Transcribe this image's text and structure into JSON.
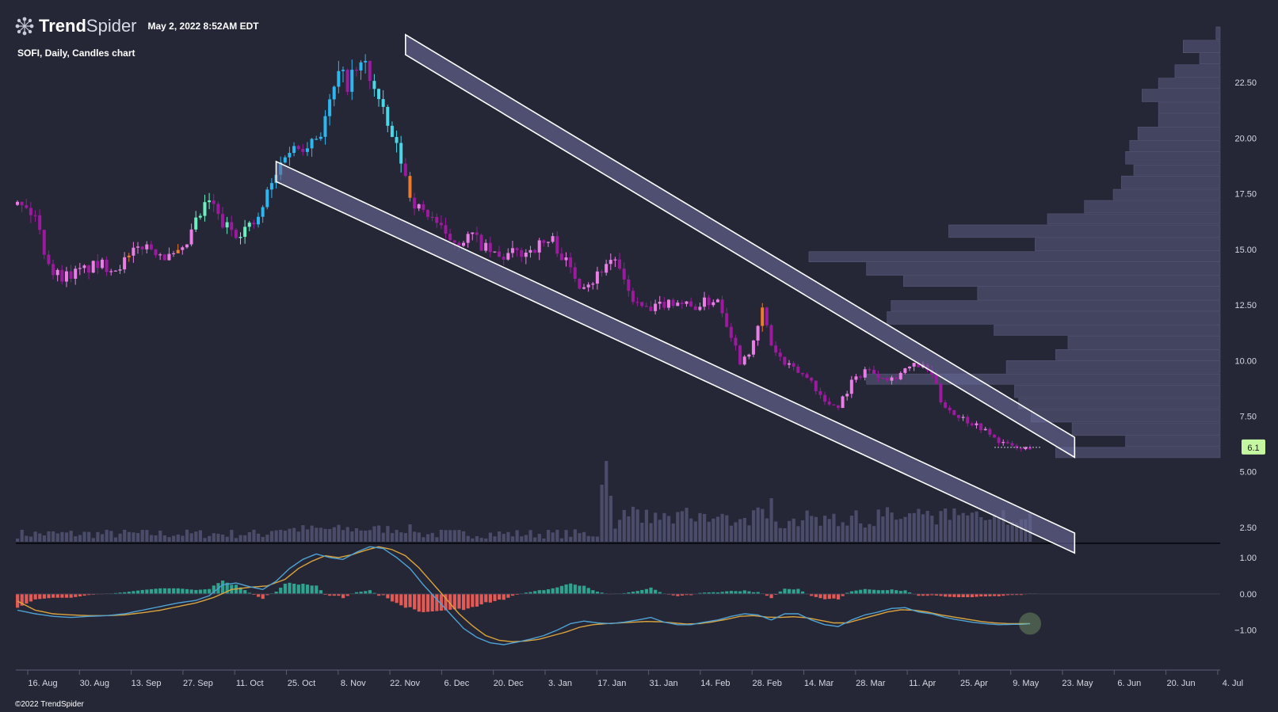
{
  "header": {
    "brand_bold": "Trend",
    "brand_light": "Spider",
    "logo_icon": "spider-web-icon",
    "timestamp": "May 2, 2022 8:52AM EDT",
    "symbol_line": "SOFI, Daily, Candles chart"
  },
  "footer": {
    "copyright": "©2022 TrendSpider"
  },
  "colors": {
    "background": "#252736",
    "candle_blue": "#2db7f0",
    "candle_cyan": "#49d6e6",
    "candle_mint": "#6cf0c0",
    "candle_orange": "#ee7a2c",
    "candle_pink": "#ea7ee6",
    "candle_magenta": "#9b1a9e",
    "volume": "#4f5170",
    "volume_profile": "#424460",
    "wedge_fill": "#6a6b99",
    "wedge_line": "#ffffff",
    "macd_line": "#4fa2d6",
    "signal_line": "#dca43c",
    "hist_pos": "#2ea38f",
    "hist_neg": "#e25a55",
    "price_tag": "#c5f7a0"
  },
  "chart_data": {
    "type": "candlestick",
    "symbol": "SOFI",
    "interval": "Daily",
    "price_axis": {
      "ticks": [
        2.5,
        5.0,
        7.5,
        10.0,
        12.5,
        15.0,
        17.5,
        20.0,
        22.5
      ],
      "tick_labels": [
        "2.50",
        "5.00",
        "7.50",
        "10.00",
        "12.50",
        "15.00",
        "17.50",
        "20.00",
        "22.50"
      ],
      "range": [
        2.0,
        25.0
      ]
    },
    "x_axis": {
      "tick_labels": [
        "16. Aug",
        "30. Aug",
        "13. Sep",
        "27. Sep",
        "11. Oct",
        "25. Oct",
        "8. Nov",
        "22. Nov",
        "6. Dec",
        "20. Dec",
        "3. Jan",
        "17. Jan",
        "31. Jan",
        "14. Feb",
        "28. Feb",
        "14. Mar",
        "28. Mar",
        "11. Apr",
        "25. Apr",
        "9. May",
        "23. May",
        "6. Jun",
        "20. Jun",
        "4. Jul"
      ]
    },
    "last_price": "6.1",
    "price_path": [
      [
        0,
        17.0
      ],
      [
        2,
        16.8
      ],
      [
        4,
        16.5
      ],
      [
        6,
        15.0
      ],
      [
        8,
        14.0
      ],
      [
        10,
        13.8
      ],
      [
        14,
        14.0
      ],
      [
        18,
        14.3
      ],
      [
        22,
        14.2
      ],
      [
        25,
        14.6
      ],
      [
        28,
        15.2
      ],
      [
        31,
        15.0
      ],
      [
        34,
        14.6
      ],
      [
        37,
        14.8
      ],
      [
        40,
        16.2
      ],
      [
        43,
        17.2
      ],
      [
        46,
        16.1
      ],
      [
        49,
        15.8
      ],
      [
        52,
        16.0
      ],
      [
        54,
        16.3
      ],
      [
        56,
        17.5
      ],
      [
        58,
        18.3
      ],
      [
        60,
        19.4
      ],
      [
        63,
        19.6
      ],
      [
        66,
        20.0
      ],
      [
        68,
        20.3
      ],
      [
        70,
        21.5
      ],
      [
        72,
        22.8
      ],
      [
        74,
        22.5
      ],
      [
        76,
        23.0
      ],
      [
        78,
        23.3
      ],
      [
        80,
        22.2
      ],
      [
        82,
        21.0
      ],
      [
        84,
        20.0
      ],
      [
        86,
        19.0
      ],
      [
        88,
        17.5
      ],
      [
        90,
        16.8
      ],
      [
        93,
        16.5
      ],
      [
        96,
        15.5
      ],
      [
        99,
        15.4
      ],
      [
        102,
        15.6
      ],
      [
        105,
        15.0
      ],
      [
        108,
        14.6
      ],
      [
        111,
        14.8
      ],
      [
        114,
        14.9
      ],
      [
        117,
        15.2
      ],
      [
        120,
        15.4
      ],
      [
        123,
        14.4
      ],
      [
        126,
        13.5
      ],
      [
        129,
        13.6
      ],
      [
        132,
        14.4
      ],
      [
        134,
        14.6
      ],
      [
        136,
        13.4
      ],
      [
        139,
        12.5
      ],
      [
        142,
        12.2
      ],
      [
        145,
        12.6
      ],
      [
        148,
        12.7
      ],
      [
        151,
        12.4
      ],
      [
        154,
        12.6
      ],
      [
        157,
        12.8
      ],
      [
        160,
        11.2
      ],
      [
        162,
        10.0
      ],
      [
        165,
        10.7
      ],
      [
        167,
        12.3
      ],
      [
        169,
        10.7
      ],
      [
        172,
        9.8
      ],
      [
        175,
        9.5
      ],
      [
        178,
        9.1
      ],
      [
        181,
        8.1
      ],
      [
        184,
        8.0
      ],
      [
        187,
        9.0
      ],
      [
        190,
        9.6
      ],
      [
        193,
        9.4
      ],
      [
        196,
        9.2
      ],
      [
        199,
        9.6
      ],
      [
        202,
        9.8
      ],
      [
        205,
        9.4
      ],
      [
        207,
        8.2
      ],
      [
        210,
        7.6
      ],
      [
        213,
        7.3
      ],
      [
        216,
        7.0
      ],
      [
        219,
        6.5
      ],
      [
        222,
        6.2
      ],
      [
        225,
        6.0
      ],
      [
        227,
        6.1
      ]
    ],
    "volume_profile": [
      [
        25.0,
        24.4,
        0.01
      ],
      [
        24.4,
        23.8,
        0.09
      ],
      [
        23.8,
        23.3,
        0.05
      ],
      [
        23.3,
        22.7,
        0.11
      ],
      [
        22.7,
        22.2,
        0.15
      ],
      [
        22.2,
        21.6,
        0.19
      ],
      [
        21.6,
        21.1,
        0.15
      ],
      [
        21.1,
        20.5,
        0.15
      ],
      [
        20.5,
        19.9,
        0.2
      ],
      [
        19.9,
        19.4,
        0.22
      ],
      [
        19.4,
        18.8,
        0.23
      ],
      [
        18.8,
        18.3,
        0.21
      ],
      [
        18.3,
        17.7,
        0.24
      ],
      [
        17.7,
        17.2,
        0.26
      ],
      [
        17.2,
        16.6,
        0.33
      ],
      [
        16.6,
        16.1,
        0.42
      ],
      [
        16.1,
        15.5,
        0.66
      ],
      [
        15.5,
        14.9,
        0.45
      ],
      [
        14.9,
        14.4,
        1.0
      ],
      [
        14.4,
        13.8,
        0.86
      ],
      [
        13.8,
        13.3,
        0.77
      ],
      [
        13.3,
        12.7,
        0.59
      ],
      [
        12.7,
        12.2,
        0.8
      ],
      [
        12.2,
        11.6,
        0.81
      ],
      [
        11.6,
        11.1,
        0.55
      ],
      [
        11.1,
        10.5,
        0.37
      ],
      [
        10.5,
        10.0,
        0.4
      ],
      [
        10.0,
        9.4,
        0.52
      ],
      [
        9.4,
        8.9,
        0.86
      ],
      [
        8.9,
        8.3,
        0.5
      ],
      [
        8.3,
        7.8,
        0.49
      ],
      [
        7.8,
        7.2,
        0.46
      ],
      [
        7.2,
        6.6,
        0.36
      ],
      [
        6.6,
        6.1,
        0.23
      ],
      [
        6.1,
        5.6,
        0.4
      ]
    ],
    "wedge": {
      "upper": {
        "from": [
          87,
          24.2
        ],
        "to": [
          237,
          6.1
        ]
      },
      "lower": {
        "from": [
          58,
          18.5
        ],
        "to": [
          237,
          1.8
        ]
      },
      "band": 0.45
    },
    "macd": {
      "axis": {
        "ticks": [
          1.0,
          0.0,
          -1.0
        ],
        "tick_labels": [
          "1.00",
          "0.00",
          "−1.00"
        ],
        "range": [
          -1.75,
          1.35
        ]
      },
      "macd_path": [
        [
          0,
          -0.45
        ],
        [
          4,
          -0.55
        ],
        [
          8,
          -0.62
        ],
        [
          12,
          -0.65
        ],
        [
          16,
          -0.62
        ],
        [
          20,
          -0.6
        ],
        [
          24,
          -0.55
        ],
        [
          28,
          -0.45
        ],
        [
          32,
          -0.35
        ],
        [
          36,
          -0.25
        ],
        [
          40,
          -0.18
        ],
        [
          43,
          -0.05
        ],
        [
          46,
          0.25
        ],
        [
          49,
          0.3
        ],
        [
          52,
          0.2
        ],
        [
          55,
          0.12
        ],
        [
          58,
          0.35
        ],
        [
          61,
          0.7
        ],
        [
          64,
          0.95
        ],
        [
          67,
          1.1
        ],
        [
          70,
          1.0
        ],
        [
          73,
          0.95
        ],
        [
          76,
          1.15
        ],
        [
          79,
          1.3
        ],
        [
          82,
          1.25
        ],
        [
          85,
          1.0
        ],
        [
          88,
          0.7
        ],
        [
          91,
          0.25
        ],
        [
          94,
          -0.15
        ],
        [
          97,
          -0.55
        ],
        [
          100,
          -0.95
        ],
        [
          103,
          -1.2
        ],
        [
          106,
          -1.35
        ],
        [
          109,
          -1.4
        ],
        [
          112,
          -1.33
        ],
        [
          115,
          -1.25
        ],
        [
          118,
          -1.15
        ],
        [
          121,
          -1.0
        ],
        [
          124,
          -0.82
        ],
        [
          127,
          -0.75
        ],
        [
          130,
          -0.8
        ],
        [
          133,
          -0.82
        ],
        [
          136,
          -0.78
        ],
        [
          139,
          -0.72
        ],
        [
          142,
          -0.65
        ],
        [
          145,
          -0.78
        ],
        [
          148,
          -0.85
        ],
        [
          151,
          -0.85
        ],
        [
          154,
          -0.78
        ],
        [
          157,
          -0.72
        ],
        [
          160,
          -0.62
        ],
        [
          163,
          -0.55
        ],
        [
          166,
          -0.58
        ],
        [
          169,
          -0.72
        ],
        [
          172,
          -0.55
        ],
        [
          175,
          -0.55
        ],
        [
          178,
          -0.72
        ],
        [
          181,
          -0.85
        ],
        [
          184,
          -0.9
        ],
        [
          187,
          -0.72
        ],
        [
          190,
          -0.58
        ],
        [
          193,
          -0.5
        ],
        [
          196,
          -0.4
        ],
        [
          199,
          -0.38
        ],
        [
          202,
          -0.5
        ],
        [
          205,
          -0.55
        ],
        [
          208,
          -0.65
        ],
        [
          211,
          -0.72
        ],
        [
          214,
          -0.78
        ],
        [
          217,
          -0.82
        ],
        [
          220,
          -0.85
        ],
        [
          223,
          -0.84
        ],
        [
          225,
          -0.84
        ],
        [
          227,
          -0.82
        ]
      ],
      "signal_path": [
        [
          0,
          -0.2
        ],
        [
          4,
          -0.45
        ],
        [
          8,
          -0.55
        ],
        [
          12,
          -0.58
        ],
        [
          16,
          -0.6
        ],
        [
          20,
          -0.6
        ],
        [
          24,
          -0.58
        ],
        [
          28,
          -0.52
        ],
        [
          32,
          -0.45
        ],
        [
          36,
          -0.35
        ],
        [
          40,
          -0.25
        ],
        [
          44,
          -0.1
        ],
        [
          48,
          0.12
        ],
        [
          52,
          0.18
        ],
        [
          56,
          0.22
        ],
        [
          60,
          0.4
        ],
        [
          63,
          0.7
        ],
        [
          66,
          0.9
        ],
        [
          69,
          1.05
        ],
        [
          72,
          1.0
        ],
        [
          75,
          1.08
        ],
        [
          78,
          1.2
        ],
        [
          81,
          1.3
        ],
        [
          84,
          1.22
        ],
        [
          87,
          1.05
        ],
        [
          90,
          0.72
        ],
        [
          93,
          0.3
        ],
        [
          96,
          -0.12
        ],
        [
          99,
          -0.55
        ],
        [
          102,
          -0.88
        ],
        [
          105,
          -1.15
        ],
        [
          108,
          -1.28
        ],
        [
          111,
          -1.32
        ],
        [
          114,
          -1.3
        ],
        [
          117,
          -1.25
        ],
        [
          120,
          -1.15
        ],
        [
          123,
          -1.05
        ],
        [
          126,
          -0.92
        ],
        [
          129,
          -0.85
        ],
        [
          132,
          -0.82
        ],
        [
          135,
          -0.8
        ],
        [
          138,
          -0.78
        ],
        [
          141,
          -0.76
        ],
        [
          144,
          -0.77
        ],
        [
          147,
          -0.8
        ],
        [
          150,
          -0.83
        ],
        [
          153,
          -0.82
        ],
        [
          156,
          -0.77
        ],
        [
          159,
          -0.7
        ],
        [
          162,
          -0.62
        ],
        [
          165,
          -0.6
        ],
        [
          168,
          -0.64
        ],
        [
          171,
          -0.65
        ],
        [
          174,
          -0.63
        ],
        [
          177,
          -0.66
        ],
        [
          180,
          -0.73
        ],
        [
          183,
          -0.8
        ],
        [
          186,
          -0.8
        ],
        [
          189,
          -0.7
        ],
        [
          192,
          -0.6
        ],
        [
          195,
          -0.5
        ],
        [
          198,
          -0.44
        ],
        [
          201,
          -0.45
        ],
        [
          204,
          -0.5
        ],
        [
          207,
          -0.58
        ],
        [
          210,
          -0.64
        ],
        [
          213,
          -0.7
        ],
        [
          216,
          -0.76
        ],
        [
          219,
          -0.8
        ],
        [
          222,
          -0.82
        ],
        [
          225,
          -0.82
        ],
        [
          227,
          -0.82
        ]
      ]
    }
  }
}
